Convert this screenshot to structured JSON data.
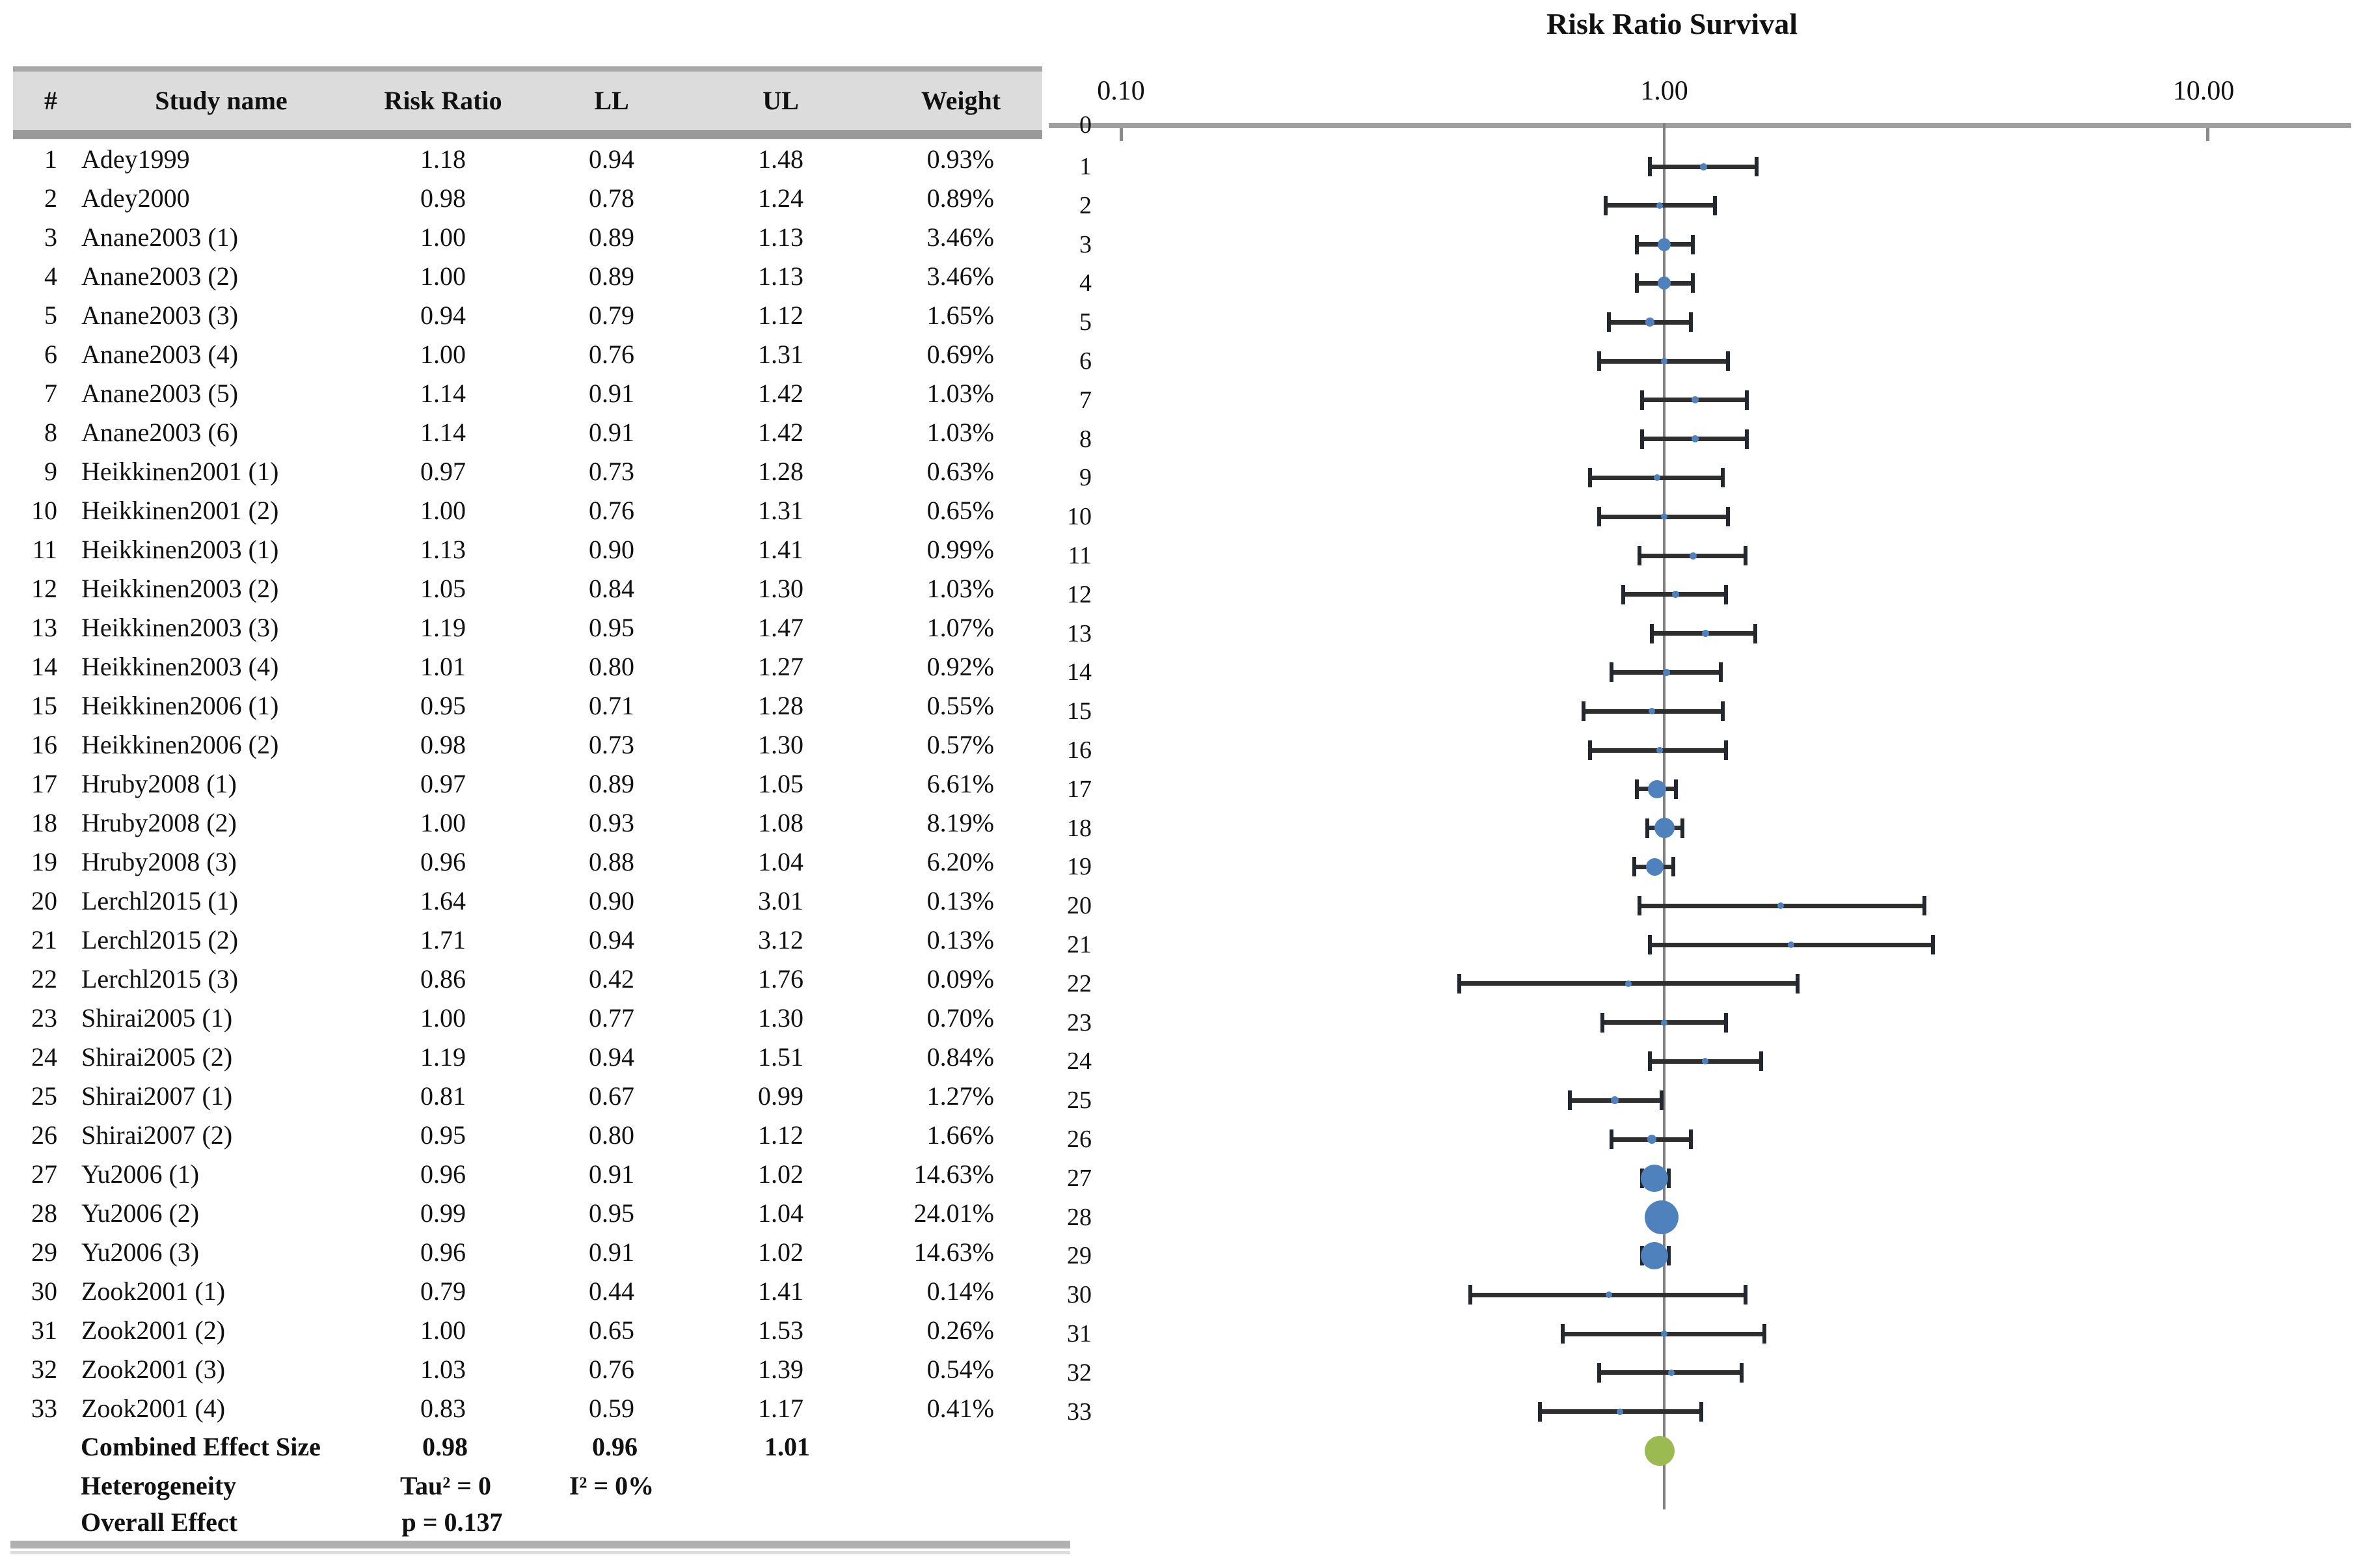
{
  "table": {
    "headers": [
      "#",
      "Study name",
      "Risk Ratio",
      "LL",
      "UL",
      "Weight"
    ],
    "summary": {
      "combined": {
        "label": "Combined Effect Size",
        "rr": "0.98",
        "ll": "0.96",
        "ul": "1.01"
      },
      "heterogeneity": {
        "label": "Heterogeneity",
        "tau": "Tau² = 0",
        "i2": "I² = 0%"
      },
      "overall": {
        "label": "Overall Effect",
        "p": "p = 0.137"
      }
    }
  },
  "plot": {
    "title": "Risk Ratio Survival",
    "axis_ticks": [
      "0.10",
      "1.00",
      "10.00"
    ],
    "colors": {
      "marker": "#4f81bd",
      "combined_marker": "#9cba52",
      "ci_bar": "#2e2e2e",
      "axis_line": "#a0a0a0",
      "ref_line": "#808080"
    }
  },
  "chart_data": {
    "type": "scatter",
    "subtype": "forest-plot",
    "title": "Risk Ratio Survival",
    "x_scale": "log10",
    "x_ticks": [
      0.1,
      1.0,
      10.0
    ],
    "x_range": [
      0.1,
      10
    ],
    "ref_line_x": 1.0,
    "legend_position": "none",
    "grid": false,
    "studies": [
      {
        "n": 1,
        "name": "Adey1999",
        "rr": 1.18,
        "ll": 0.94,
        "ul": 1.48,
        "weight_pct": 0.93
      },
      {
        "n": 2,
        "name": "Adey2000",
        "rr": 0.98,
        "ll": 0.78,
        "ul": 1.24,
        "weight_pct": 0.89
      },
      {
        "n": 3,
        "name": "Anane2003 (1)",
        "rr": 1.0,
        "ll": 0.89,
        "ul": 1.13,
        "weight_pct": 3.46
      },
      {
        "n": 4,
        "name": "Anane2003 (2)",
        "rr": 1.0,
        "ll": 0.89,
        "ul": 1.13,
        "weight_pct": 3.46
      },
      {
        "n": 5,
        "name": "Anane2003 (3)",
        "rr": 0.94,
        "ll": 0.79,
        "ul": 1.12,
        "weight_pct": 1.65
      },
      {
        "n": 6,
        "name": "Anane2003 (4)",
        "rr": 1.0,
        "ll": 0.76,
        "ul": 1.31,
        "weight_pct": 0.69
      },
      {
        "n": 7,
        "name": "Anane2003 (5)",
        "rr": 1.14,
        "ll": 0.91,
        "ul": 1.42,
        "weight_pct": 1.03
      },
      {
        "n": 8,
        "name": "Anane2003 (6)",
        "rr": 1.14,
        "ll": 0.91,
        "ul": 1.42,
        "weight_pct": 1.03
      },
      {
        "n": 9,
        "name": "Heikkinen2001 (1)",
        "rr": 0.97,
        "ll": 0.73,
        "ul": 1.28,
        "weight_pct": 0.63
      },
      {
        "n": 10,
        "name": "Heikkinen2001 (2)",
        "rr": 1.0,
        "ll": 0.76,
        "ul": 1.31,
        "weight_pct": 0.65
      },
      {
        "n": 11,
        "name": "Heikkinen2003 (1)",
        "rr": 1.13,
        "ll": 0.9,
        "ul": 1.41,
        "weight_pct": 0.99
      },
      {
        "n": 12,
        "name": "Heikkinen2003 (2)",
        "rr": 1.05,
        "ll": 0.84,
        "ul": 1.3,
        "weight_pct": 1.03
      },
      {
        "n": 13,
        "name": "Heikkinen2003 (3)",
        "rr": 1.19,
        "ll": 0.95,
        "ul": 1.47,
        "weight_pct": 1.07
      },
      {
        "n": 14,
        "name": "Heikkinen2003 (4)",
        "rr": 1.01,
        "ll": 0.8,
        "ul": 1.27,
        "weight_pct": 0.92
      },
      {
        "n": 15,
        "name": "Heikkinen2006 (1)",
        "rr": 0.95,
        "ll": 0.71,
        "ul": 1.28,
        "weight_pct": 0.55
      },
      {
        "n": 16,
        "name": "Heikkinen2006 (2)",
        "rr": 0.98,
        "ll": 0.73,
        "ul": 1.3,
        "weight_pct": 0.57
      },
      {
        "n": 17,
        "name": "Hruby2008 (1)",
        "rr": 0.97,
        "ll": 0.89,
        "ul": 1.05,
        "weight_pct": 6.61
      },
      {
        "n": 18,
        "name": "Hruby2008 (2)",
        "rr": 1.0,
        "ll": 0.93,
        "ul": 1.08,
        "weight_pct": 8.19
      },
      {
        "n": 19,
        "name": "Hruby2008 (3)",
        "rr": 0.96,
        "ll": 0.88,
        "ul": 1.04,
        "weight_pct": 6.2
      },
      {
        "n": 20,
        "name": "Lerchl2015 (1)",
        "rr": 1.64,
        "ll": 0.9,
        "ul": 3.01,
        "weight_pct": 0.13
      },
      {
        "n": 21,
        "name": "Lerchl2015 (2)",
        "rr": 1.71,
        "ll": 0.94,
        "ul": 3.12,
        "weight_pct": 0.13
      },
      {
        "n": 22,
        "name": "Lerchl2015 (3)",
        "rr": 0.86,
        "ll": 0.42,
        "ul": 1.76,
        "weight_pct": 0.09
      },
      {
        "n": 23,
        "name": "Shirai2005 (1)",
        "rr": 1.0,
        "ll": 0.77,
        "ul": 1.3,
        "weight_pct": 0.7
      },
      {
        "n": 24,
        "name": "Shirai2005 (2)",
        "rr": 1.19,
        "ll": 0.94,
        "ul": 1.51,
        "weight_pct": 0.84
      },
      {
        "n": 25,
        "name": "Shirai2007 (1)",
        "rr": 0.81,
        "ll": 0.67,
        "ul": 0.99,
        "weight_pct": 1.27
      },
      {
        "n": 26,
        "name": "Shirai2007 (2)",
        "rr": 0.95,
        "ll": 0.8,
        "ul": 1.12,
        "weight_pct": 1.66
      },
      {
        "n": 27,
        "name": "Yu2006 (1)",
        "rr": 0.96,
        "ll": 0.91,
        "ul": 1.02,
        "weight_pct": 14.63
      },
      {
        "n": 28,
        "name": "Yu2006 (2)",
        "rr": 0.99,
        "ll": 0.95,
        "ul": 1.04,
        "weight_pct": 24.01
      },
      {
        "n": 29,
        "name": "Yu2006 (3)",
        "rr": 0.96,
        "ll": 0.91,
        "ul": 1.02,
        "weight_pct": 14.63
      },
      {
        "n": 30,
        "name": "Zook2001 (1)",
        "rr": 0.79,
        "ll": 0.44,
        "ul": 1.41,
        "weight_pct": 0.14
      },
      {
        "n": 31,
        "name": "Zook2001 (2)",
        "rr": 1.0,
        "ll": 0.65,
        "ul": 1.53,
        "weight_pct": 0.26
      },
      {
        "n": 32,
        "name": "Zook2001 (3)",
        "rr": 1.03,
        "ll": 0.76,
        "ul": 1.39,
        "weight_pct": 0.54
      },
      {
        "n": 33,
        "name": "Zook2001 (4)",
        "rr": 0.83,
        "ll": 0.59,
        "ul": 1.17,
        "weight_pct": 0.41
      }
    ],
    "combined": {
      "label": "Combined Effect Size",
      "rr": 0.98,
      "ll": 0.96,
      "ul": 1.01
    },
    "heterogeneity": {
      "tau2": 0,
      "i2_pct": 0
    },
    "overall_effect_p": 0.137
  }
}
